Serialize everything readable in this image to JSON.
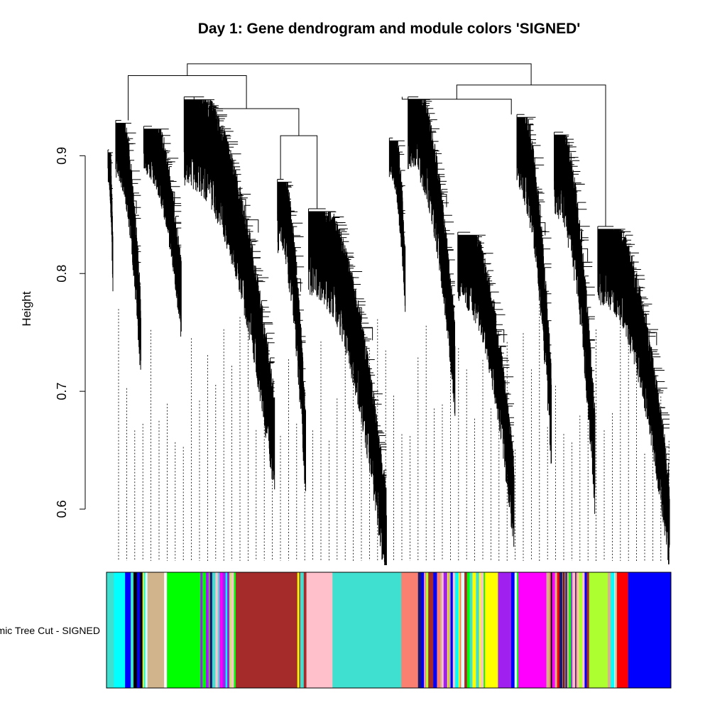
{
  "chart_data": {
    "type": "dendrogram",
    "title": "Day 1: Gene dendrogram and module colors 'SIGNED'",
    "ylabel": "Height",
    "xlabel": "",
    "ylim": [
      0.55,
      0.99
    ],
    "yticks": [
      0.6,
      0.7,
      0.8,
      0.9
    ],
    "ytick_labels": [
      "0.6",
      "0.7",
      "0.8",
      "0.9"
    ],
    "color_row_label": "Dynamic Tree Cut - SIGNED",
    "clusters": [
      {
        "module": "turquoise",
        "share": 0.25,
        "top": 0.905,
        "bottom": 0.8
      },
      {
        "module": "tan",
        "share": 0.9,
        "top": 0.93,
        "bottom": 0.74
      },
      {
        "module": "green",
        "share": 1.3,
        "top": 0.925,
        "bottom": 0.77
      },
      {
        "module": "brown",
        "share": 3.0,
        "top": 0.95,
        "bottom": 0.66
      },
      {
        "module": "pink",
        "share": 1.0,
        "top": 0.88,
        "bottom": 0.645
      },
      {
        "module": "turquoise",
        "share": 2.6,
        "top": 0.855,
        "bottom": 0.575
      },
      {
        "module": "salmon",
        "share": 0.6,
        "top": 0.915,
        "bottom": 0.79
      },
      {
        "module": "yellow",
        "share": 1.6,
        "top": 0.95,
        "bottom": 0.72
      },
      {
        "module": "magenta",
        "share": 1.9,
        "top": 0.835,
        "bottom": 0.605
      },
      {
        "module": "purple",
        "share": 1.2,
        "top": 0.935,
        "bottom": 0.68
      },
      {
        "module": "greenyellow",
        "share": 1.4,
        "top": 0.92,
        "bottom": 0.645
      },
      {
        "module": "blue",
        "share": 2.4,
        "top": 0.84,
        "bottom": 0.59
      }
    ],
    "merges": [
      {
        "height": 0.978,
        "left_group": [
          0,
          5
        ],
        "right_group": [
          6,
          11
        ]
      },
      {
        "height": 0.968,
        "left_group": [
          0,
          2
        ],
        "right_group": [
          3,
          5
        ]
      },
      {
        "height": 0.94,
        "left_group": [
          3,
          3
        ],
        "right_group": [
          4,
          5
        ]
      },
      {
        "height": 0.917,
        "left_group": [
          4,
          4
        ],
        "right_group": [
          5,
          5
        ]
      },
      {
        "height": 0.96,
        "left_group": [
          6,
          10
        ],
        "right_group": [
          11,
          11
        ]
      },
      {
        "height": 0.948,
        "left_group": [
          6,
          7
        ],
        "right_group": [
          8,
          10
        ]
      }
    ],
    "module_colors": [
      {
        "module": "turquoise",
        "share": 0.4,
        "color": "#40E0D0"
      },
      {
        "module": "cyan",
        "share": 0.6,
        "color": "#00FFFF"
      },
      {
        "module": "blue",
        "share": 0.3,
        "color": "#0000FF"
      },
      {
        "module": "mixed",
        "share": 0.9,
        "color": "stripes"
      },
      {
        "module": "tan",
        "share": 0.9,
        "color": "#D2B48C"
      },
      {
        "module": "white",
        "share": 0.15,
        "color": "#FFFFFF"
      },
      {
        "module": "green",
        "share": 1.8,
        "color": "#00FF00"
      },
      {
        "module": "mixed",
        "share": 1.9,
        "color": "stripes"
      },
      {
        "module": "brown",
        "share": 3.2,
        "color": "#A52A2A"
      },
      {
        "module": "mixed",
        "share": 0.6,
        "color": "stripes"
      },
      {
        "module": "pink",
        "share": 1.4,
        "color": "#FFC0CB"
      },
      {
        "module": "turquoise",
        "share": 3.7,
        "color": "#40E0D0"
      },
      {
        "module": "salmon",
        "share": 0.9,
        "color": "#FA8072"
      },
      {
        "module": "mixed",
        "share": 3.6,
        "color": "stripes"
      },
      {
        "module": "yellow",
        "share": 0.7,
        "color": "#FFFF00"
      },
      {
        "module": "purple",
        "share": 0.6,
        "color": "#A020F0"
      },
      {
        "module": "mixed",
        "share": 0.5,
        "color": "stripes"
      },
      {
        "module": "magenta",
        "share": 1.5,
        "color": "#FF00FF"
      },
      {
        "module": "mixed",
        "share": 2.3,
        "color": "stripes"
      },
      {
        "module": "greenyellow",
        "share": 1.0,
        "color": "#ADFF2F"
      },
      {
        "module": "mixed",
        "share": 0.5,
        "color": "stripes"
      },
      {
        "module": "red",
        "share": 0.6,
        "color": "#FF0000"
      },
      {
        "module": "blue",
        "share": 2.3,
        "color": "#0000FF"
      }
    ],
    "stripe_palette": [
      "#40E0D0",
      "#0000FF",
      "#A52A2A",
      "#FFFF00",
      "#00FF00",
      "#FF0000",
      "#000000",
      "#FFC0CB",
      "#FF00FF",
      "#A020F0",
      "#ADFF2F",
      "#D2B48C",
      "#FA8072",
      "#00FFFF",
      "#191970",
      "#E0FFFF"
    ],
    "grid": false,
    "legend": "none"
  }
}
